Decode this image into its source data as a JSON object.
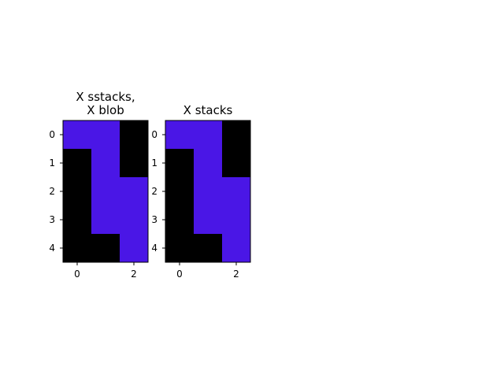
{
  "chart_data": [
    {
      "type": "heatmap",
      "title": [
        "X sstacks,",
        "X blob"
      ],
      "x_ticks": [
        0,
        2
      ],
      "y_ticks": [
        0,
        1,
        2,
        3,
        4
      ],
      "color_map": {
        "0": "#000000",
        "1": "#4a16e6"
      },
      "grid": [
        [
          1,
          1,
          0
        ],
        [
          0,
          1,
          0
        ],
        [
          0,
          1,
          1
        ],
        [
          0,
          1,
          1
        ],
        [
          0,
          0,
          1
        ]
      ]
    },
    {
      "type": "heatmap",
      "title": [
        "X stacks"
      ],
      "x_ticks": [
        0,
        2
      ],
      "y_ticks": [
        0,
        1,
        2,
        3,
        4
      ],
      "color_map": {
        "0": "#000000",
        "1": "#4a16e6"
      },
      "grid": [
        [
          1,
          1,
          0
        ],
        [
          0,
          1,
          0
        ],
        [
          0,
          1,
          1
        ],
        [
          0,
          1,
          1
        ],
        [
          0,
          0,
          1
        ]
      ]
    }
  ]
}
